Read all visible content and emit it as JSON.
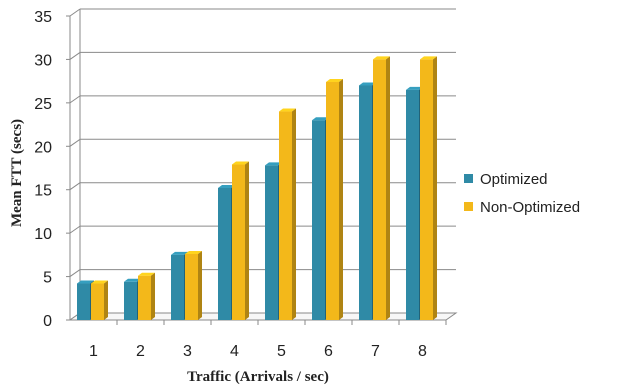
{
  "chart_data": {
    "type": "bar",
    "categories": [
      "1",
      "2",
      "3",
      "4",
      "5",
      "6",
      "7",
      "8"
    ],
    "series": [
      {
        "name": "Optimized",
        "values": [
          4.2,
          4.4,
          7.5,
          15.2,
          17.8,
          23.0,
          27.0,
          26.5
        ],
        "color": "#2f8aa6"
      },
      {
        "name": "Non-Optimized",
        "values": [
          4.2,
          5.1,
          7.6,
          17.9,
          24.0,
          27.4,
          30.0,
          30.0
        ],
        "color": "#f3b81a"
      }
    ],
    "xlabel": "Traffic (Arrivals / sec)",
    "ylabel": "Mean FTT (secs)",
    "ylim": [
      0,
      35
    ],
    "yticks": [
      0,
      5,
      10,
      15,
      20,
      25,
      30,
      35
    ],
    "grid": true,
    "legend_position": "right",
    "three_d": true
  }
}
